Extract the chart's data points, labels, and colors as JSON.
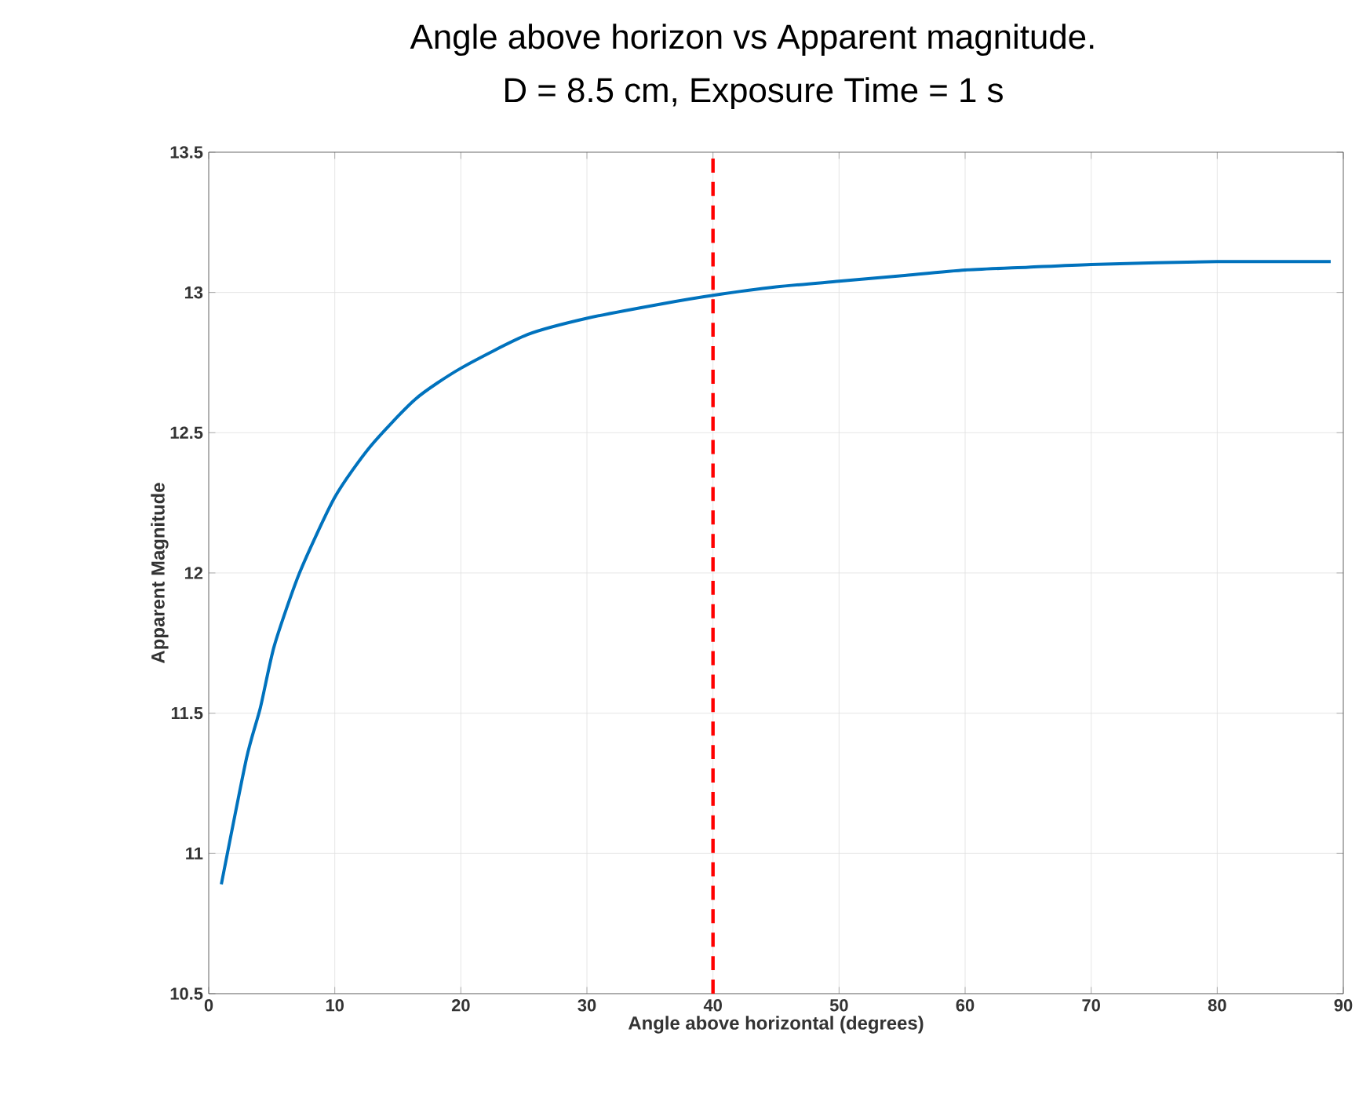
{
  "chart_data": {
    "type": "line",
    "title": "Angle above horizon vs Apparent magnitude.",
    "subtitle": "D = 8.5 cm, Exposure Time = 1 s",
    "xlabel": "Angle above horizontal (degrees)",
    "ylabel": "Apparent Magnitude",
    "x": [
      1,
      3,
      4.1,
      5.2,
      7.2,
      10,
      12.8,
      16.4,
      20,
      25.3,
      30.2,
      36,
      40,
      45,
      50,
      55,
      60,
      65,
      70,
      80,
      89
    ],
    "series": [
      {
        "color": "#0072bd",
        "values": [
          10.89,
          11.34,
          11.52,
          11.74,
          12.0,
          12.27,
          12.45,
          12.62,
          12.73,
          12.85,
          12.91,
          12.96,
          12.99,
          13.02,
          13.04,
          13.06,
          13.08,
          13.09,
          13.1,
          13.11,
          13.11
        ]
      }
    ],
    "xlim": [
      0,
      90
    ],
    "ylim": [
      10.5,
      13.5
    ],
    "xticks": [
      0,
      10,
      20,
      30,
      40,
      50,
      60,
      70,
      80,
      90
    ],
    "yticks": [
      10.5,
      11,
      11.5,
      12,
      12.5,
      13,
      13.5
    ],
    "ref_lines": [
      {
        "axis": "x",
        "value": 40,
        "color": "#ff0000",
        "line_style": "dashed"
      }
    ],
    "grid": true,
    "marker": "none",
    "line_style": "solid"
  }
}
